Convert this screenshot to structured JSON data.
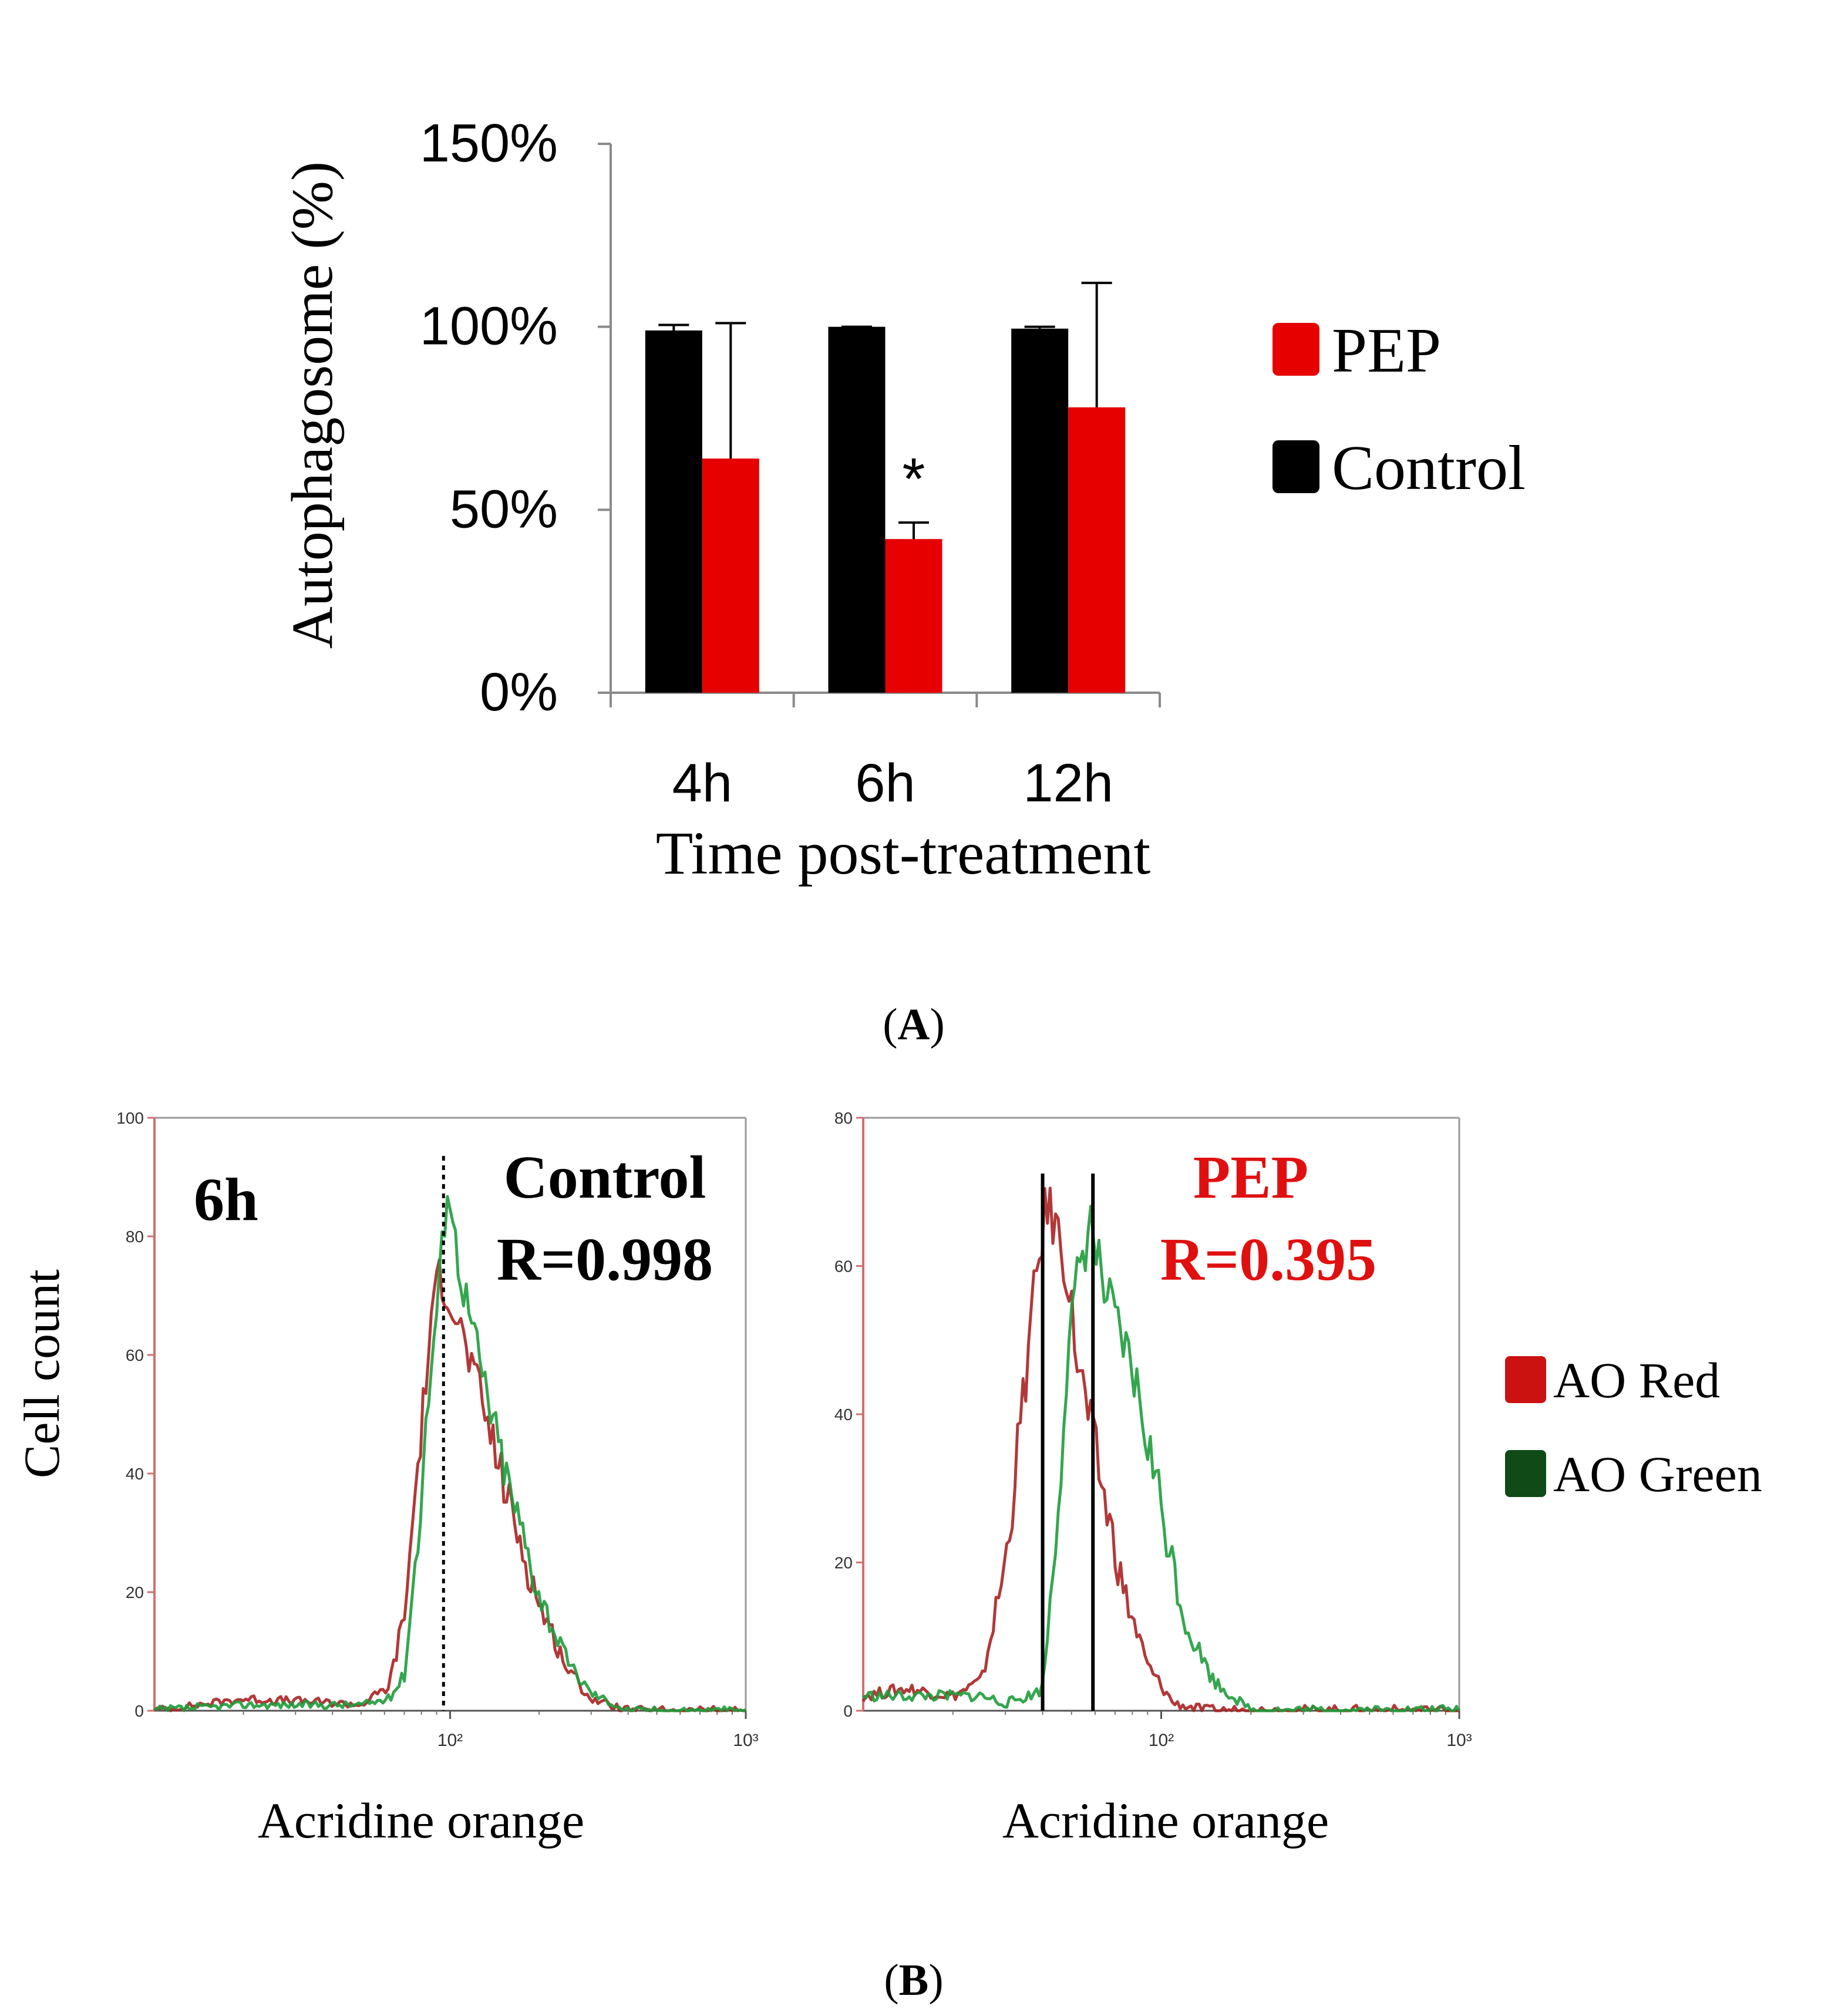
{
  "panel_a": {
    "label": "A",
    "legend": [
      {
        "name": "PEP",
        "color": "#e60000"
      },
      {
        "name": "Control",
        "color": "#000000"
      }
    ],
    "significance_marker": "*"
  },
  "panel_b": {
    "label": "B",
    "left": {
      "time_label": "6h",
      "title": "Control",
      "r_value": "R=0.998"
    },
    "right": {
      "title": "PEP",
      "r_value": "R=0.395"
    },
    "legend": [
      {
        "name": "AO Red",
        "color": "#cc1111"
      },
      {
        "name": "AO Green",
        "color": "#0f4a17"
      }
    ]
  },
  "colors": {
    "pep": "#e60000",
    "control": "#000000",
    "ao_red": "#aa2222",
    "ao_green": "#1f9c3c",
    "axis": "#888888",
    "pep_text": "#e01010"
  },
  "chart_data": [
    {
      "type": "bar",
      "title": "",
      "xlabel": "Time post-treatment",
      "ylabel": "Autophagosome (%)",
      "categories": [
        "4h",
        "6h",
        "12h"
      ],
      "ylim": [
        0,
        150
      ],
      "yticks": [
        "0%",
        "50%",
        "100%",
        "150%"
      ],
      "series": [
        {
          "name": "Control",
          "values": [
            99,
            100,
            99.5
          ],
          "errors": [
            1.5,
            0,
            0.5
          ]
        },
        {
          "name": "PEP",
          "values": [
            64,
            42,
            78
          ],
          "errors": [
            37,
            4.5,
            34
          ]
        }
      ],
      "annotations": [
        {
          "category": "6h",
          "series": "PEP",
          "text": "*"
        }
      ]
    },
    {
      "type": "line",
      "title": "Control",
      "xlabel": "Acridine orange",
      "ylabel": "Cell count",
      "xscale": "log",
      "xlim": [
        10,
        1000
      ],
      "ylim": [
        0,
        100
      ],
      "xticks": [
        "10²",
        "10³"
      ],
      "yticks": [
        "0",
        "20",
        "40",
        "60",
        "80",
        "100"
      ],
      "vertical_lines": [
        {
          "x": 95,
          "style": "dotted"
        }
      ],
      "series": [
        {
          "name": "AO Red",
          "x": [
            10,
            20,
            35,
            50,
            62,
            70,
            78,
            85,
            92,
            100,
            115,
            135,
            160,
            200,
            250,
            300,
            400,
            1000
          ],
          "values": [
            0,
            2,
            1.5,
            1,
            4,
            16,
            42,
            62,
            74,
            70,
            60,
            48,
            34,
            18,
            7,
            2,
            0,
            0
          ]
        },
        {
          "name": "AO Green",
          "x": [
            10,
            20,
            35,
            50,
            62,
            70,
            78,
            85,
            92,
            98,
            105,
            115,
            135,
            160,
            200,
            250,
            300,
            400,
            1000
          ],
          "values": [
            0,
            1,
            1,
            1,
            2,
            6,
            30,
            55,
            72,
            90,
            78,
            68,
            52,
            37,
            20,
            8,
            3,
            0,
            0
          ]
        }
      ]
    },
    {
      "type": "line",
      "title": "PEP",
      "xlabel": "Acridine orange",
      "ylabel": "Cell count",
      "xscale": "log",
      "xlim": [
        10,
        1000
      ],
      "ylim": [
        0,
        80
      ],
      "xticks": [
        "10²",
        "10³"
      ],
      "yticks": [
        "0",
        "20",
        "40",
        "60",
        "80"
      ],
      "vertical_lines": [
        {
          "x": 40,
          "style": "solid"
        },
        {
          "x": 59,
          "style": "solid"
        }
      ],
      "series": [
        {
          "name": "AO Red",
          "x": [
            10,
            14,
            20,
            25,
            30,
            34,
            38,
            41,
            44,
            48,
            52,
            58,
            65,
            75,
            90,
            110,
            140,
            1000
          ],
          "values": [
            2,
            3,
            2,
            4,
            20,
            40,
            58,
            68,
            66,
            60,
            48,
            38,
            28,
            16,
            6,
            1,
            0,
            0
          ]
        },
        {
          "name": "AO Green",
          "x": [
            10,
            14,
            20,
            25,
            30,
            36,
            40,
            44,
            48,
            53,
            58,
            63,
            70,
            80,
            95,
            120,
            150,
            200,
            1000
          ],
          "values": [
            2,
            2,
            2,
            2,
            1,
            2,
            3,
            22,
            45,
            60,
            66,
            58,
            52,
            46,
            32,
            12,
            4,
            0,
            0
          ]
        }
      ]
    }
  ]
}
